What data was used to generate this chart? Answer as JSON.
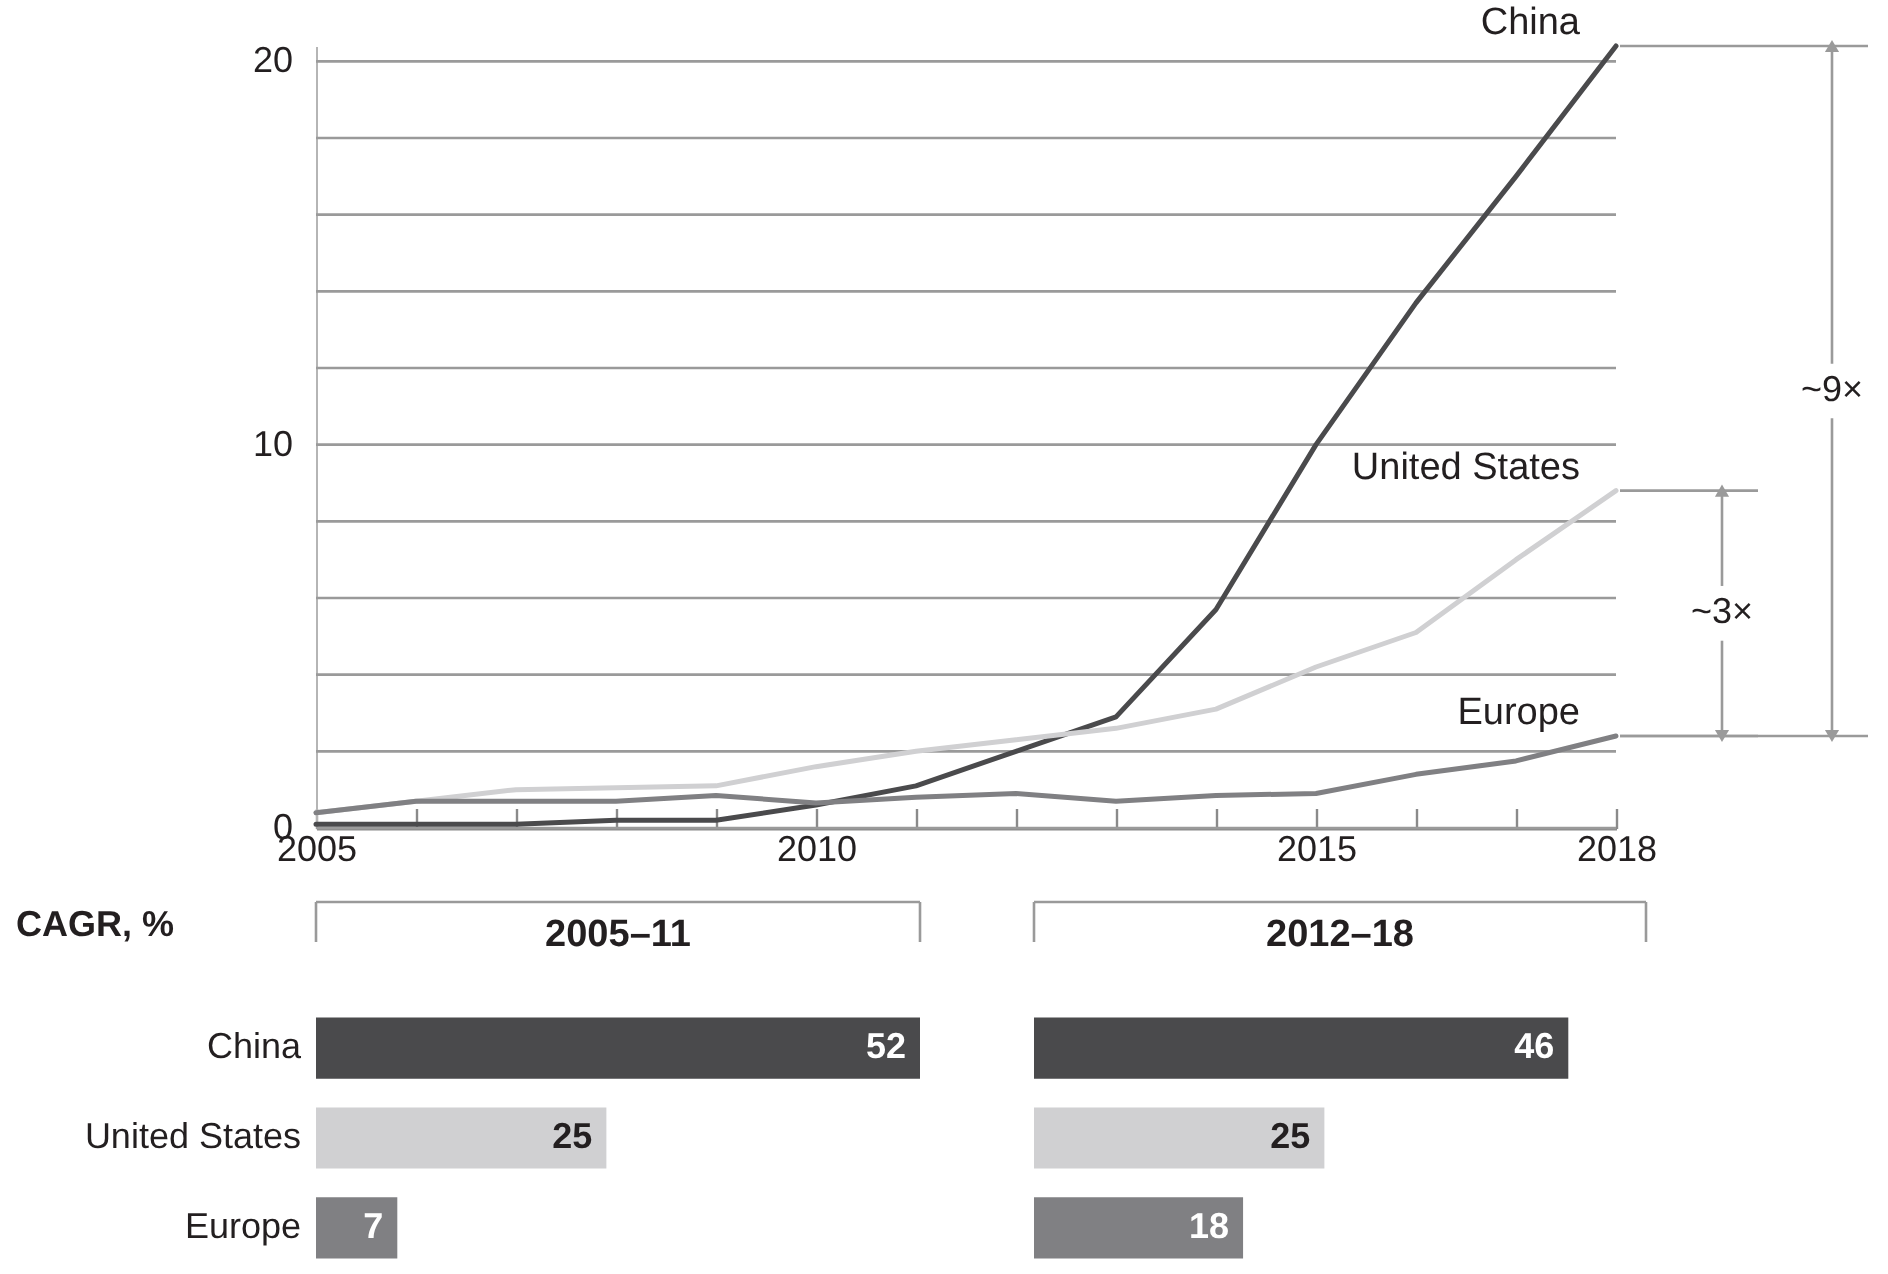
{
  "chart_data": [
    {
      "type": "line",
      "x": [
        2005,
        2006,
        2007,
        2008,
        2009,
        2010,
        2011,
        2012,
        2013,
        2014,
        2015,
        2016,
        2017,
        2018
      ],
      "series": [
        {
          "name": "China",
          "color": "#4a4a4c",
          "values": [
            0.1,
            0.1,
            0.1,
            0.2,
            0.2,
            0.6,
            1.1,
            2.0,
            2.9,
            5.7,
            10.0,
            13.7,
            17.0,
            20.4
          ]
        },
        {
          "name": "United States",
          "color": "#d0d0d2",
          "values": [
            0.4,
            0.7,
            1.0,
            1.05,
            1.1,
            1.6,
            2.0,
            2.3,
            2.6,
            3.1,
            4.2,
            5.1,
            7.0,
            8.8
          ]
        },
        {
          "name": "Europe",
          "color": "#808083",
          "values": [
            0.4,
            0.7,
            0.7,
            0.7,
            0.85,
            0.65,
            0.8,
            0.9,
            0.7,
            0.85,
            0.9,
            1.4,
            1.75,
            2.4
          ]
        }
      ],
      "xlim": [
        2005,
        2018
      ],
      "xticks": [
        2005,
        {
          "value": 2006,
          "label": null
        },
        {
          "value": 2007,
          "label": null
        },
        {
          "value": 2008,
          "label": null
        },
        {
          "value": 2009,
          "label": null
        },
        2010,
        {
          "value": 2011,
          "label": null
        },
        {
          "value": 2012,
          "label": null
        },
        {
          "value": 2013,
          "label": null
        },
        {
          "value": 2014,
          "label": null
        },
        2015,
        {
          "value": 2016,
          "label": null
        },
        {
          "value": 2017,
          "label": null
        },
        2018
      ],
      "ylim": [
        0,
        20.4
      ],
      "yticks": [
        0,
        {
          "value": 2,
          "label": null
        },
        {
          "value": 4,
          "label": null
        },
        {
          "value": 6,
          "label": null
        },
        {
          "value": 8,
          "label": null
        },
        10,
        {
          "value": 12,
          "label": null
        },
        {
          "value": 14,
          "label": null
        },
        {
          "value": 16,
          "label": null
        },
        {
          "value": 18,
          "label": null
        },
        20
      ],
      "grid": "y",
      "annotations": [
        "~9×",
        "~3×"
      ]
    },
    {
      "type": "bar",
      "orientation": "horizontal",
      "title": "2005–11",
      "categories": [
        "China",
        "United States",
        "Europe"
      ],
      "values": [
        52,
        25,
        7
      ],
      "colors": [
        "#4a4a4c",
        "#d0d0d2",
        "#808083"
      ],
      "data_labels": true,
      "annotations": [
        "CAGR, %"
      ]
    },
    {
      "type": "bar",
      "orientation": "horizontal",
      "title": "2012–18",
      "categories": [
        null,
        null,
        null
      ],
      "values": [
        46,
        25,
        18
      ],
      "colors": [
        "#4a4a4c",
        "#d0d0d2",
        "#808083"
      ],
      "data_labels": true
    }
  ]
}
